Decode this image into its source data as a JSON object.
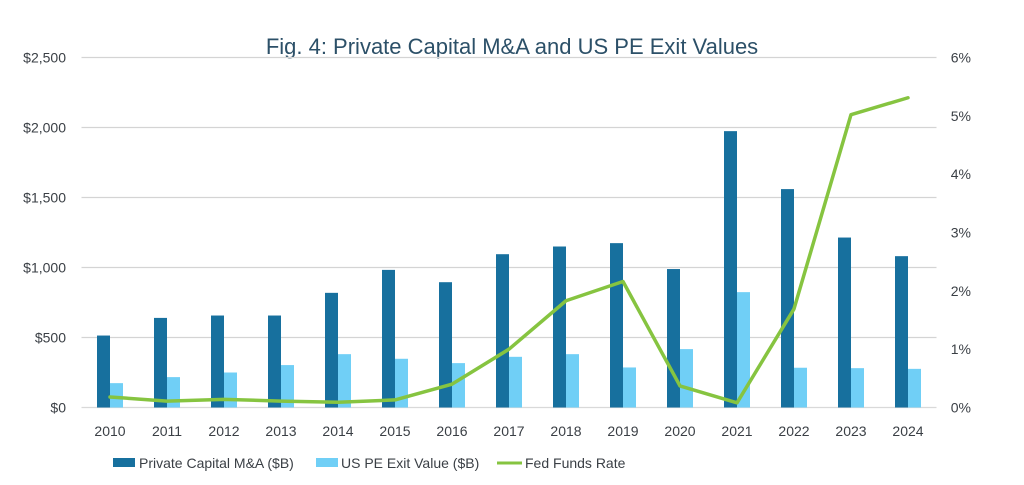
{
  "chart_data": {
    "type": "bar",
    "title": "Fig. 4: Private Capital M&A and US PE Exit Values",
    "categories": [
      "2010",
      "2011",
      "2012",
      "2013",
      "2014",
      "2015",
      "2016",
      "2017",
      "2018",
      "2019",
      "2020",
      "2021",
      "2022",
      "2023",
      "2024"
    ],
    "series": [
      {
        "name": "Private Capital M&A ($B)",
        "type": "bar",
        "axis": "left",
        "color": "#17709e",
        "values": [
          514,
          640,
          657,
          657,
          819,
          983,
          895,
          1095,
          1150,
          1174,
          989,
          1974,
          1560,
          1214,
          1081
        ]
      },
      {
        "name": "US PE Exit Value ($B)",
        "type": "bar",
        "axis": "left",
        "color": "#70cff6",
        "values": [
          174,
          217,
          250,
          303,
          381,
          348,
          317,
          362,
          381,
          286,
          417,
          824,
          284,
          281,
          276
        ]
      },
      {
        "name": "Fed Funds Rate",
        "type": "line",
        "axis": "right",
        "color": "#86c440",
        "values": [
          0.18,
          0.11,
          0.14,
          0.11,
          0.09,
          0.13,
          0.4,
          1.0,
          1.83,
          2.16,
          0.37,
          0.08,
          1.69,
          5.02,
          5.31
        ]
      }
    ],
    "left_axis": {
      "ylim": [
        0,
        2500
      ],
      "ticks": [
        0,
        500,
        1000,
        1500,
        2000,
        2500
      ],
      "tick_labels": [
        "$0",
        "$500",
        "$1,000",
        "$1,500",
        "$2,000",
        "$2,500"
      ]
    },
    "right_axis": {
      "ylim": [
        0,
        6
      ],
      "ticks": [
        0,
        1,
        2,
        3,
        4,
        5,
        6
      ],
      "tick_labels": [
        "0%",
        "1%",
        "2%",
        "3%",
        "4%",
        "5%",
        "6%"
      ]
    },
    "grid": true,
    "legend_position": "bottom"
  }
}
